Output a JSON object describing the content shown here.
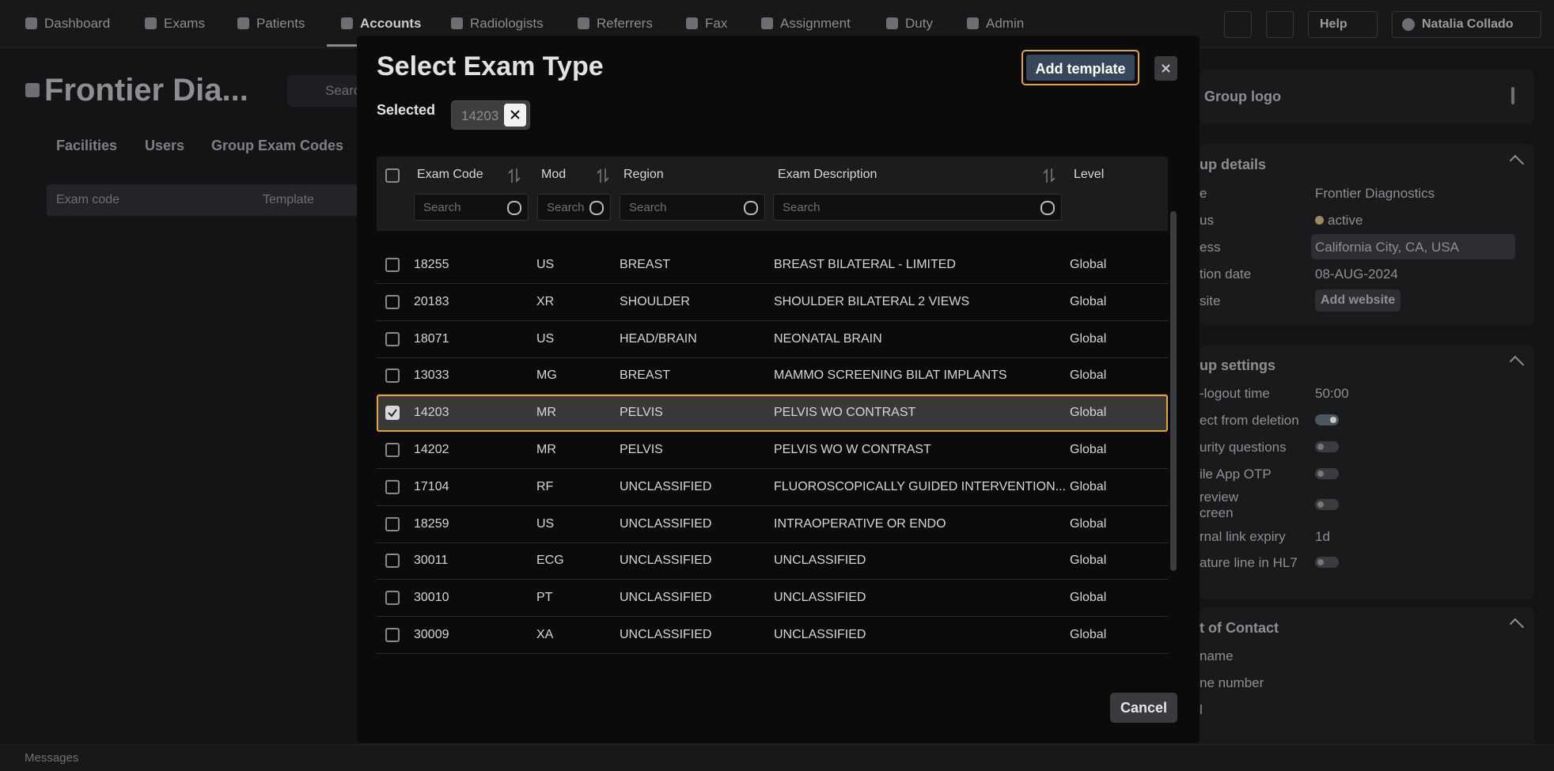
{
  "nav": {
    "items": [
      "Dashboard",
      "Exams",
      "Patients",
      "Accounts",
      "Radiologists",
      "Referrers",
      "Fax",
      "Assignment",
      "Duty",
      "Admin"
    ],
    "help": "Help",
    "user": "Natalia Collado"
  },
  "page": {
    "title": "Frontier Dia...",
    "search": "Search",
    "tabs": [
      "Facilities",
      "Users",
      "Group Exam Codes"
    ],
    "columns": [
      "Exam code",
      "Template"
    ]
  },
  "side": {
    "logo": "Group logo",
    "details": {
      "title": "up details",
      "rows": [
        {
          "label": "e",
          "value": "Frontier Diagnostics"
        },
        {
          "label": "us",
          "value": "active"
        },
        {
          "label": "ess",
          "value": "California City, CA, USA"
        },
        {
          "label": "tion date",
          "value": "08-AUG-2024"
        },
        {
          "label": "site",
          "value": "Add website"
        }
      ]
    },
    "settings": {
      "title": "up settings",
      "rows": [
        {
          "label": [
            "-logout time"
          ],
          "value": "50:00"
        },
        {
          "label": [
            "ect from deletion"
          ]
        },
        {
          "label": [
            "urity questions"
          ]
        },
        {
          "label": [
            "ile App OTP"
          ]
        },
        {
          "label": [
            "review",
            "creen"
          ]
        },
        {
          "label": [
            "rnal link expiry"
          ],
          "value": "1d"
        },
        {
          "label": [
            "ature line in HL7"
          ]
        }
      ]
    },
    "contact": {
      "title": "t of Contact",
      "rows": [
        "name",
        "ne number",
        "l"
      ]
    }
  },
  "footer": "Messages",
  "modal": {
    "title": "Select Exam Type",
    "add_button": "Add template",
    "selected_label": "Selected",
    "selected": [
      "14203"
    ],
    "columns": [
      "Exam Code",
      "Mod",
      "Region",
      "Exam Description",
      "Level"
    ],
    "search_placeholder": "Search",
    "rows": [
      [
        "18255",
        "US",
        "BREAST",
        "BREAST BILATERAL - LIMITED",
        "Global"
      ],
      [
        "20183",
        "XR",
        "SHOULDER",
        "SHOULDER BILATERAL 2 VIEWS",
        "Global"
      ],
      [
        "18071",
        "US",
        "HEAD/BRAIN",
        "NEONATAL BRAIN",
        "Global"
      ],
      [
        "13033",
        "MG",
        "BREAST",
        "MAMMO SCREENING BILAT IMPLANTS",
        "Global"
      ],
      [
        "14203",
        "MR",
        "PELVIS",
        "PELVIS WO CONTRAST",
        "Global"
      ],
      [
        "14202",
        "MR",
        "PELVIS",
        "PELVIS WO W CONTRAST",
        "Global"
      ],
      [
        "17104",
        "RF",
        "UNCLASSIFIED",
        "FLUOROSCOPICALLY GUIDED INTERVENTION...",
        "Global"
      ],
      [
        "18259",
        "US",
        "UNCLASSIFIED",
        "INTRAOPERATIVE OR ENDO",
        "Global"
      ],
      [
        "30011",
        "ECG",
        "UNCLASSIFIED",
        "UNCLASSIFIED",
        "Global"
      ],
      [
        "30010",
        "PT",
        "UNCLASSIFIED",
        "UNCLASSIFIED",
        "Global"
      ],
      [
        "30009",
        "XA",
        "UNCLASSIFIED",
        "UNCLASSIFIED",
        "Global"
      ]
    ],
    "cancel": "Cancel"
  }
}
